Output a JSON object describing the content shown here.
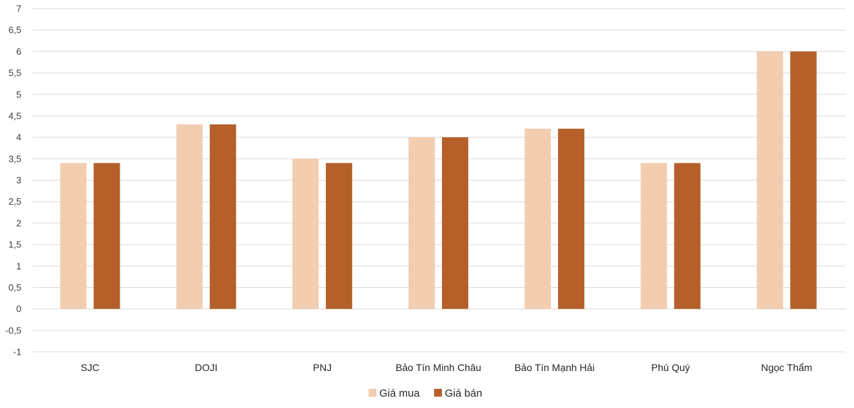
{
  "chart_data": {
    "type": "bar",
    "categories": [
      "SJC",
      "DOJI",
      "PNJ",
      "Bảo Tín Minh Châu",
      "Bảo Tín Mạnh Hải",
      "Phú Quý",
      "Ngọc Thẩm"
    ],
    "series": [
      {
        "name": "Giá mua",
        "color": "#f2cdb0",
        "values": [
          3.4,
          4.3,
          3.5,
          4.0,
          4.2,
          3.4,
          6.0
        ]
      },
      {
        "name": "Giá bán",
        "color": "#b5602a",
        "values": [
          3.4,
          4.3,
          3.4,
          4.0,
          4.2,
          3.4,
          6.0
        ]
      }
    ],
    "ylim": [
      -1,
      7
    ],
    "yticks": [
      "-1",
      "-0,5",
      "0",
      "0,5",
      "1",
      "1,5",
      "2",
      "2,5",
      "3",
      "3,5",
      "4",
      "4,5",
      "5",
      "5,5",
      "6",
      "6,5",
      "7"
    ],
    "grid": true,
    "legend_position": "bottom",
    "title": "",
    "xlabel": "",
    "ylabel": ""
  }
}
